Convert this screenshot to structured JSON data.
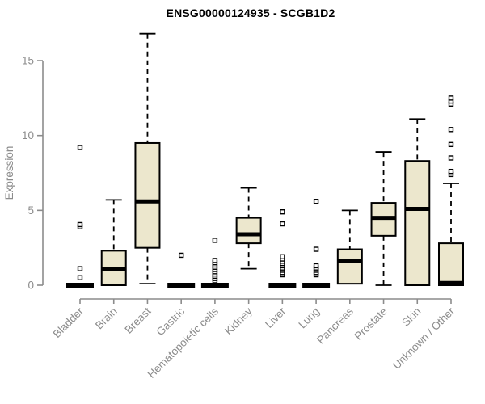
{
  "chart_data": {
    "type": "boxplot",
    "title": "ENSG00000124935 - SCGB1D2",
    "xlabel": "",
    "ylabel": "Expression",
    "yticks": [
      0,
      5,
      10,
      15
    ],
    "ylim": [
      -0.9,
      16.9
    ],
    "grid": false,
    "legend": "none",
    "categories": [
      "Bladder",
      "Brain",
      "Breast",
      "Gastric",
      "Hematopoietic cells",
      "Kidney",
      "Liver",
      "Lung",
      "Pancreas",
      "Prostate",
      "Skin",
      "Unknown / Other"
    ],
    "series": [
      {
        "category": "Bladder",
        "low": 0,
        "q1": 0,
        "median": 0,
        "q3": 0,
        "high": 0,
        "outliers": [
          0.5,
          1.1,
          3.9,
          4.05,
          9.2
        ]
      },
      {
        "category": "Brain",
        "low": 0,
        "q1": 0,
        "median": 1.1,
        "q3": 2.3,
        "high": 5.7,
        "outliers": []
      },
      {
        "category": "Breast",
        "low": 0.1,
        "q1": 2.5,
        "median": 5.6,
        "q3": 9.5,
        "high": 16.8,
        "outliers": []
      },
      {
        "category": "Gastric",
        "low": 0,
        "q1": 0,
        "median": 0,
        "q3": 0,
        "high": 0,
        "outliers": [
          2.0
        ]
      },
      {
        "category": "Hematopoietic cells",
        "low": 0,
        "q1": 0,
        "median": 0,
        "q3": 0,
        "high": 0,
        "outliers": [
          0.3,
          0.45,
          0.6,
          0.75,
          0.9,
          1.05,
          1.2,
          1.35,
          1.5,
          1.65,
          3.0
        ]
      },
      {
        "category": "Kidney",
        "low": 1.1,
        "q1": 2.8,
        "median": 3.4,
        "q3": 4.5,
        "high": 6.5,
        "outliers": []
      },
      {
        "category": "Liver",
        "low": 0,
        "q1": 0,
        "median": 0,
        "q3": 0,
        "high": 0,
        "outliers": [
          0.7,
          0.85,
          1.0,
          1.15,
          1.3,
          1.45,
          1.6,
          1.75,
          1.9,
          4.1,
          4.9
        ]
      },
      {
        "category": "Lung",
        "low": 0,
        "q1": 0,
        "median": 0,
        "q3": 0,
        "high": 0,
        "outliers": [
          0.7,
          0.85,
          1.0,
          1.15,
          1.3,
          2.4,
          5.6
        ]
      },
      {
        "category": "Pancreas",
        "low": 0.1,
        "q1": 0.1,
        "median": 1.6,
        "q3": 2.4,
        "high": 5.0,
        "outliers": []
      },
      {
        "category": "Prostate",
        "low": 0,
        "q1": 3.3,
        "median": 4.5,
        "q3": 5.5,
        "high": 8.9,
        "outliers": []
      },
      {
        "category": "Skin",
        "low": 0,
        "q1": 0,
        "median": 5.1,
        "q3": 8.3,
        "high": 11.1,
        "outliers": []
      },
      {
        "category": "Unknown / Other",
        "low": 0,
        "q1": 0,
        "median": 0.15,
        "q3": 2.8,
        "high": 6.8,
        "outliers": [
          7.4,
          7.6,
          8.5,
          9.4,
          10.4,
          12.1,
          12.3,
          12.5
        ]
      }
    ],
    "colors": {
      "box_fill": "#ece7cd",
      "box_stroke": "#000000",
      "median": "#000000",
      "outlier_stroke": "#000000",
      "outlier_fill": "#ffffff",
      "axis": "#8c8c8c",
      "tick_label": "#8c8c8c",
      "title": "#000000",
      "background": "#ffffff"
    }
  }
}
